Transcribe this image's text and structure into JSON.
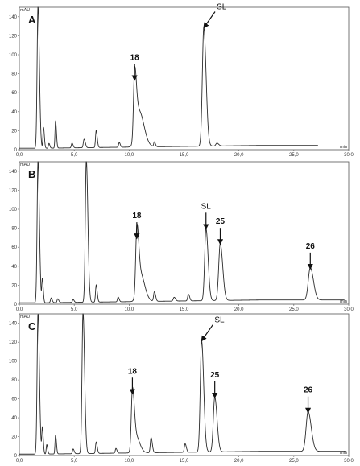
{
  "chart_data": [
    {
      "type": "line",
      "panel_label": "A",
      "y_unit": "mAU",
      "x_unit": "min",
      "xlim": [
        0,
        30
      ],
      "ylim": [
        0,
        150
      ],
      "x_ticks": [
        "0,0",
        "5,0",
        "10,0",
        "15,0",
        "20,0",
        "25,0",
        "30,0"
      ],
      "y_ticks": [
        "0",
        "20",
        "40",
        "60",
        "80",
        "100",
        "120",
        "140"
      ],
      "series": [
        {
          "trace_end": 27.2,
          "peaks": [
            {
              "t": 1.7,
              "h": 150,
              "w": 0.08
            },
            {
              "t": 2.2,
              "h": 22,
              "w": 0.05
            },
            {
              "t": 2.7,
              "h": 5,
              "w": 0.05
            },
            {
              "t": 3.3,
              "h": 29,
              "w": 0.05
            },
            {
              "t": 4.8,
              "h": 5,
              "w": 0.06
            },
            {
              "t": 5.9,
              "h": 9,
              "w": 0.07
            },
            {
              "t": 7.0,
              "h": 18,
              "w": 0.06
            },
            {
              "t": 9.1,
              "h": 5,
              "w": 0.06
            },
            {
              "t": 10.5,
              "h": 70,
              "w": 0.1
            },
            {
              "t": 10.9,
              "h": 38,
              "w": 0.28
            },
            {
              "t": 12.3,
              "h": 5,
              "w": 0.06
            },
            {
              "t": 16.8,
              "h": 125,
              "w": 0.13
            },
            {
              "t": 18.0,
              "h": 3,
              "w": 0.1
            }
          ]
        }
      ],
      "annotations": [
        {
          "text": "18",
          "x": 10.5,
          "y": 70,
          "bold": true
        },
        {
          "text": "SL",
          "x": 16.8,
          "y": 125,
          "bold": false,
          "diagonal": true
        }
      ]
    },
    {
      "type": "line",
      "panel_label": "B",
      "y_unit": "mAU",
      "x_unit": "min",
      "xlim": [
        0,
        30
      ],
      "ylim": [
        0,
        150
      ],
      "x_ticks": [
        "0,0",
        "5,0",
        "10,0",
        "15,0",
        "20,0",
        "25,0",
        "30,0"
      ],
      "y_ticks": [
        "0",
        "20",
        "40",
        "60",
        "80",
        "100",
        "120",
        "140"
      ],
      "series": [
        {
          "trace_end": 29.6,
          "peaks": [
            {
              "t": 1.7,
              "h": 150,
              "w": 0.08
            },
            {
              "t": 2.1,
              "h": 25,
              "w": 0.05
            },
            {
              "t": 2.9,
              "h": 5,
              "w": 0.06
            },
            {
              "t": 3.5,
              "h": 4,
              "w": 0.06
            },
            {
              "t": 4.9,
              "h": 3,
              "w": 0.06
            },
            {
              "t": 6.1,
              "h": 150,
              "w": 0.09
            },
            {
              "t": 7.0,
              "h": 18,
              "w": 0.06
            },
            {
              "t": 9.0,
              "h": 5,
              "w": 0.06
            },
            {
              "t": 10.7,
              "h": 66,
              "w": 0.1
            },
            {
              "t": 11.0,
              "h": 30,
              "w": 0.25
            },
            {
              "t": 12.3,
              "h": 10,
              "w": 0.07
            },
            {
              "t": 14.1,
              "h": 4,
              "w": 0.08
            },
            {
              "t": 15.4,
              "h": 7,
              "w": 0.07
            },
            {
              "t": 17.0,
              "h": 76,
              "w": 0.12
            },
            {
              "t": 18.3,
              "h": 60,
              "w": 0.14
            },
            {
              "t": 26.5,
              "h": 34,
              "w": 0.18
            }
          ]
        }
      ],
      "annotations": [
        {
          "text": "18",
          "x": 10.7,
          "y": 66,
          "bold": true
        },
        {
          "text": "SL",
          "x": 17.0,
          "y": 76,
          "bold": false
        },
        {
          "text": "25",
          "x": 18.3,
          "y": 60,
          "bold": true
        },
        {
          "text": "26",
          "x": 26.5,
          "y": 34,
          "bold": true
        }
      ]
    },
    {
      "type": "line",
      "panel_label": "C",
      "y_unit": "mAU",
      "x_unit": "min",
      "xlim": [
        0,
        30
      ],
      "ylim": [
        0,
        150
      ],
      "x_ticks": [
        "0,0",
        "5,0",
        "10,0",
        "15,0",
        "20,0",
        "25,0",
        "30,0"
      ],
      "y_ticks": [
        "0",
        "20",
        "40",
        "60",
        "80",
        "100",
        "120",
        "140"
      ],
      "series": [
        {
          "trace_end": 29.8,
          "peaks": [
            {
              "t": 1.7,
              "h": 150,
              "w": 0.08
            },
            {
              "t": 2.1,
              "h": 28,
              "w": 0.05
            },
            {
              "t": 2.5,
              "h": 10,
              "w": 0.05
            },
            {
              "t": 3.3,
              "h": 20,
              "w": 0.05
            },
            {
              "t": 4.9,
              "h": 5,
              "w": 0.06
            },
            {
              "t": 5.8,
              "h": 150,
              "w": 0.09
            },
            {
              "t": 7.0,
              "h": 12,
              "w": 0.06
            },
            {
              "t": 8.8,
              "h": 5,
              "w": 0.06
            },
            {
              "t": 10.3,
              "h": 62,
              "w": 0.1
            },
            {
              "t": 10.6,
              "h": 18,
              "w": 0.22
            },
            {
              "t": 12.0,
              "h": 16,
              "w": 0.07
            },
            {
              "t": 15.1,
              "h": 9,
              "w": 0.07
            },
            {
              "t": 16.6,
              "h": 118,
              "w": 0.12
            },
            {
              "t": 17.8,
              "h": 58,
              "w": 0.13
            },
            {
              "t": 26.3,
              "h": 42,
              "w": 0.18
            }
          ]
        }
      ],
      "annotations": [
        {
          "text": "18",
          "x": 10.3,
          "y": 62,
          "bold": true
        },
        {
          "text": "SL",
          "x": 16.6,
          "y": 118,
          "bold": false,
          "diagonal": true
        },
        {
          "text": "25",
          "x": 17.8,
          "y": 58,
          "bold": true
        },
        {
          "text": "26",
          "x": 26.3,
          "y": 42,
          "bold": true
        }
      ]
    }
  ]
}
